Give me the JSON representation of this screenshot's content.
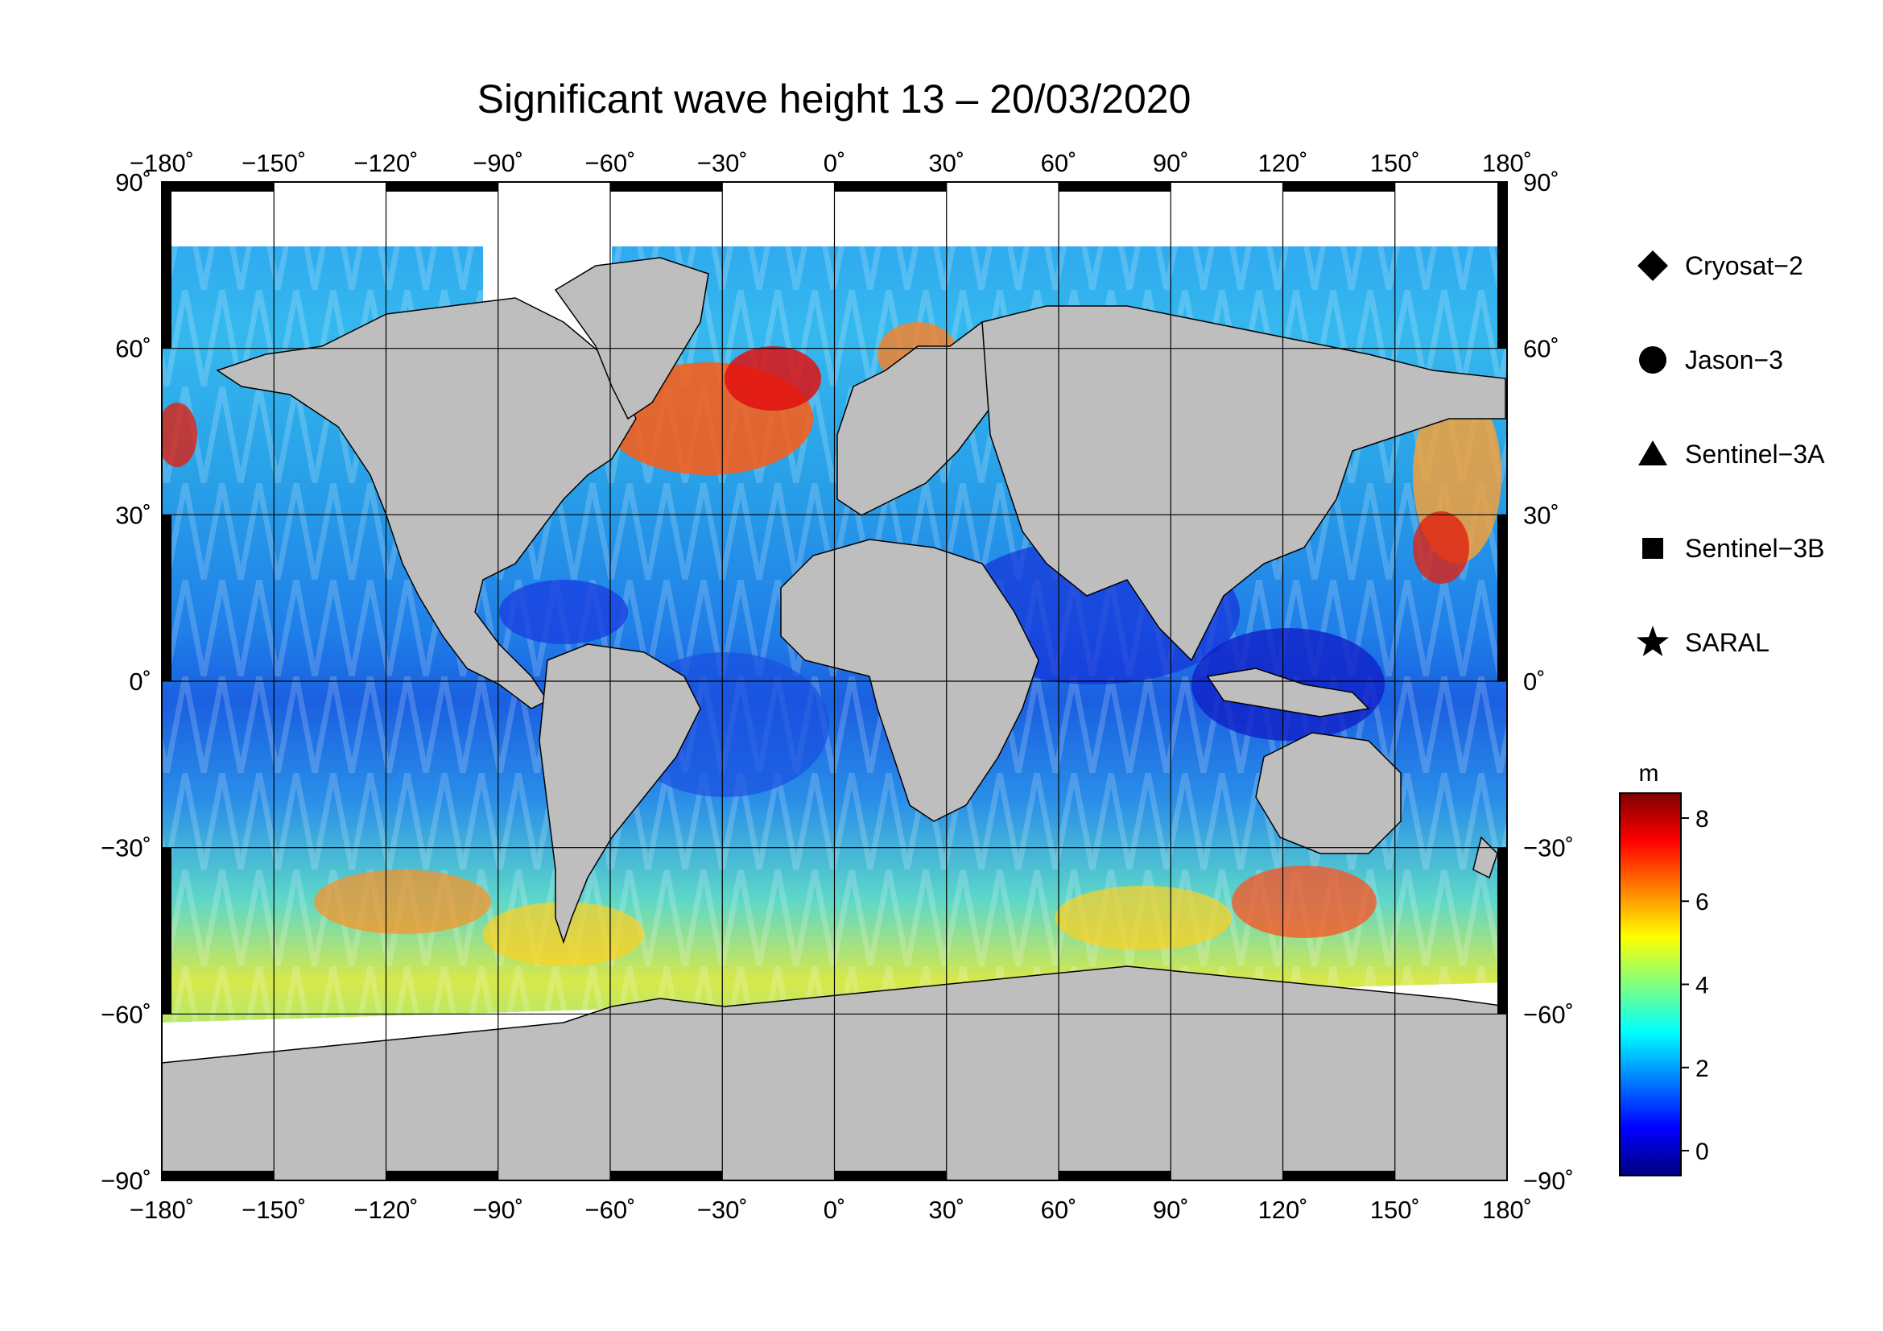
{
  "title": "Significant wave height 13 – 20/03/2020",
  "map": {
    "projection": "equirectangular",
    "lon_range": [
      -180,
      180
    ],
    "lat_range": [
      -90,
      90
    ],
    "lon_ticks": [
      -180,
      -150,
      -120,
      -90,
      -60,
      -30,
      0,
      30,
      60,
      90,
      120,
      150,
      180
    ],
    "lat_ticks": [
      90,
      60,
      30,
      0,
      -30,
      -60,
      -90
    ],
    "lon_tick_labels": [
      "−180˚",
      "−150˚",
      "−120˚",
      "−90˚",
      "−60˚",
      "−30˚",
      "0˚",
      "30˚",
      "60˚",
      "90˚",
      "120˚",
      "150˚",
      "180˚"
    ],
    "lat_tick_labels": [
      "90˚",
      "60˚",
      "30˚",
      "0˚",
      "−30˚",
      "−60˚",
      "−90˚"
    ],
    "grid": true,
    "land_color": "#bebebe",
    "ice_color": "#ffffff"
  },
  "legend": {
    "items": [
      {
        "label": "Cryosat−2",
        "marker": "diamond"
      },
      {
        "label": "Jason−3",
        "marker": "circle"
      },
      {
        "label": "Sentinel−3A",
        "marker": "triangle"
      },
      {
        "label": "Sentinel−3B",
        "marker": "square"
      },
      {
        "label": "SARAL",
        "marker": "star"
      }
    ]
  },
  "colorbar": {
    "unit": "m",
    "min": -0.6,
    "max": 8.6,
    "ticks": [
      0,
      2,
      4,
      6,
      8
    ],
    "tick_labels": [
      "0",
      "2",
      "4",
      "6",
      "8"
    ],
    "colormap": "jet",
    "colors": [
      "#00007f",
      "#0000ff",
      "#007fff",
      "#00ffff",
      "#7fff7f",
      "#ffff00",
      "#ff7f00",
      "#ff0000",
      "#7f0000"
    ]
  }
}
